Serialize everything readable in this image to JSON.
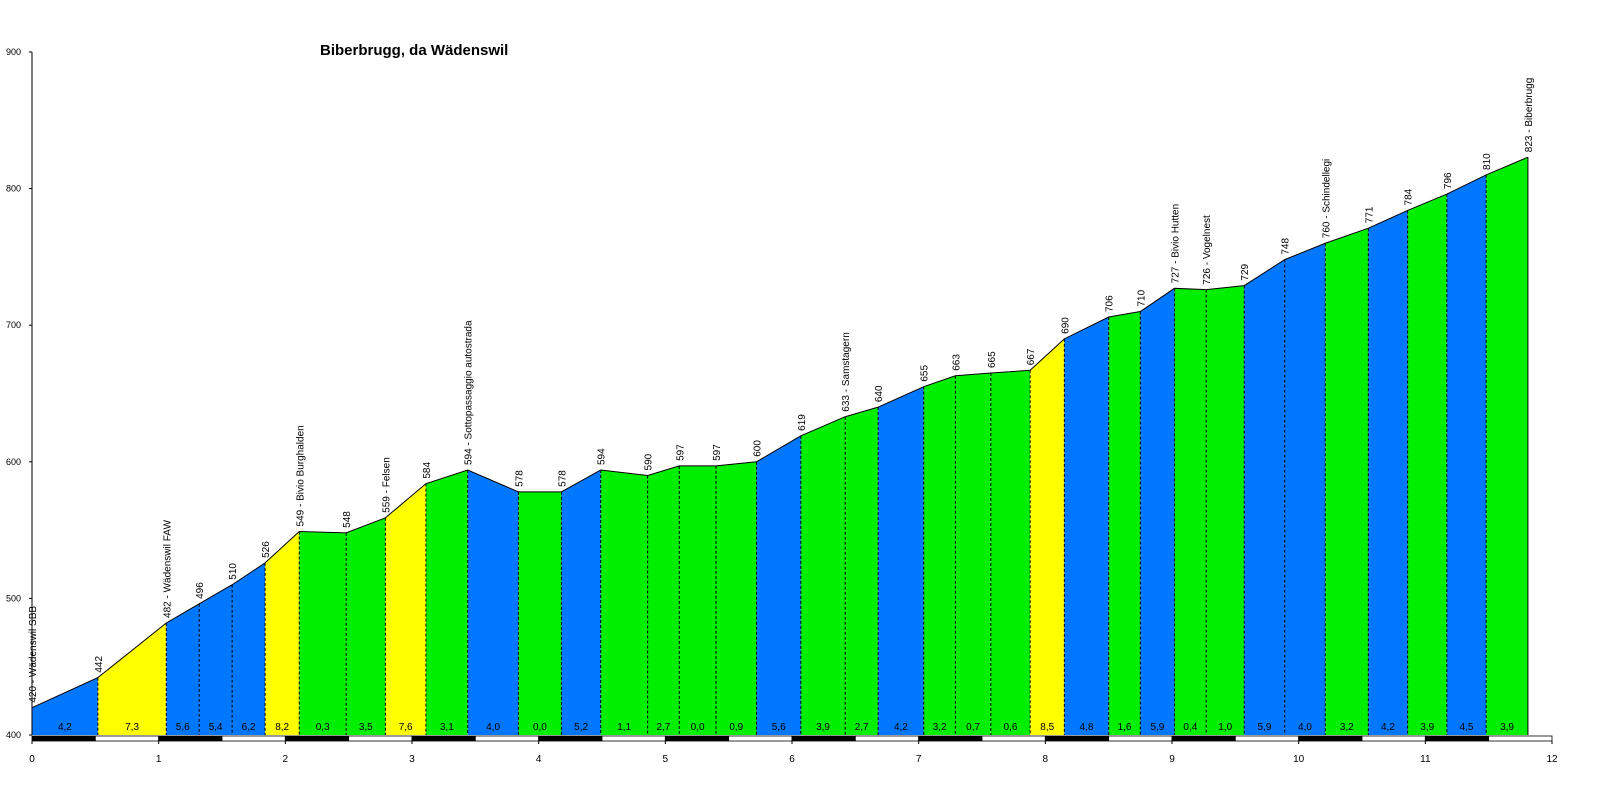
{
  "chart_data": {
    "type": "area",
    "title": "Biberbrugg, da Wädenswil",
    "xlabel": "",
    "ylabel": "",
    "xlim": [
      0,
      12
    ],
    "ylim": [
      400,
      900
    ],
    "yticks": [
      400,
      500,
      600,
      700,
      800,
      900
    ],
    "xticks": [
      0,
      1,
      2,
      3,
      4,
      5,
      6,
      7,
      8,
      9,
      10,
      11,
      12
    ],
    "grid": false,
    "colors": {
      "green": "#00ee00",
      "blue": "#0077ff",
      "yellow": "#ffff00",
      "outline": "#000000"
    },
    "points": [
      {
        "x": 0.0,
        "y": 420,
        "label": "420 - Wädenswil SBB"
      },
      {
        "x": 0.52,
        "y": 442,
        "label": "442"
      },
      {
        "x": 1.06,
        "y": 482,
        "label": "482 - Wädenswil FAW"
      },
      {
        "x": 1.32,
        "y": 496,
        "label": "496"
      },
      {
        "x": 1.58,
        "y": 510,
        "label": "510"
      },
      {
        "x": 1.84,
        "y": 526,
        "label": "526"
      },
      {
        "x": 2.11,
        "y": 549,
        "label": "549 - Bivio Burghalden"
      },
      {
        "x": 2.48,
        "y": 548,
        "label": "548"
      },
      {
        "x": 2.79,
        "y": 559,
        "label": "559 - Felsen"
      },
      {
        "x": 3.11,
        "y": 584,
        "label": "584"
      },
      {
        "x": 3.44,
        "y": 594,
        "label": "594 - Sottopassaggio autostrada"
      },
      {
        "x": 3.84,
        "y": 578,
        "label": "578"
      },
      {
        "x": 4.18,
        "y": 578,
        "label": "578"
      },
      {
        "x": 4.49,
        "y": 594,
        "label": "594"
      },
      {
        "x": 4.86,
        "y": 590,
        "label": "590"
      },
      {
        "x": 5.11,
        "y": 597,
        "label": "597"
      },
      {
        "x": 5.4,
        "y": 597,
        "label": "597"
      },
      {
        "x": 5.72,
        "y": 600,
        "label": "600"
      },
      {
        "x": 6.07,
        "y": 619,
        "label": "619"
      },
      {
        "x": 6.42,
        "y": 633,
        "label": "633 - Samstagern"
      },
      {
        "x": 6.68,
        "y": 640,
        "label": "640"
      },
      {
        "x": 7.04,
        "y": 655,
        "label": "655"
      },
      {
        "x": 7.29,
        "y": 663,
        "label": "663"
      },
      {
        "x": 7.57,
        "y": 665,
        "label": "665"
      },
      {
        "x": 7.88,
        "y": 667,
        "label": "667"
      },
      {
        "x": 8.15,
        "y": 690,
        "label": "690"
      },
      {
        "x": 8.5,
        "y": 706,
        "label": "706"
      },
      {
        "x": 8.75,
        "y": 710,
        "label": "710"
      },
      {
        "x": 9.02,
        "y": 727,
        "label": "727 - Bivio Hutten"
      },
      {
        "x": 9.27,
        "y": 726,
        "label": "726 - Vogelnest"
      },
      {
        "x": 9.57,
        "y": 729,
        "label": "729"
      },
      {
        "x": 9.89,
        "y": 748,
        "label": "748"
      },
      {
        "x": 10.21,
        "y": 760,
        "label": "760 - Schindellegi"
      },
      {
        "x": 10.55,
        "y": 771,
        "label": "771"
      },
      {
        "x": 10.86,
        "y": 784,
        "label": "784"
      },
      {
        "x": 11.17,
        "y": 796,
        "label": "796"
      },
      {
        "x": 11.48,
        "y": 810,
        "label": "810"
      },
      {
        "x": 11.81,
        "y": 823,
        "label": "823 - Biberbrugg"
      }
    ],
    "segments": [
      {
        "grade": "4,2",
        "color": "blue"
      },
      {
        "grade": "7,3",
        "color": "yellow"
      },
      {
        "grade": "5,6",
        "color": "blue"
      },
      {
        "grade": "5,4",
        "color": "blue"
      },
      {
        "grade": "6,2",
        "color": "blue"
      },
      {
        "grade": "8,2",
        "color": "yellow"
      },
      {
        "grade": "0,3",
        "color": "green"
      },
      {
        "grade": "3,5",
        "color": "green"
      },
      {
        "grade": "7,6",
        "color": "yellow"
      },
      {
        "grade": "3,1",
        "color": "green"
      },
      {
        "grade": "4,0",
        "color": "blue"
      },
      {
        "grade": "0,0",
        "color": "green"
      },
      {
        "grade": "5,2",
        "color": "blue"
      },
      {
        "grade": "1,1",
        "color": "green"
      },
      {
        "grade": "2,7",
        "color": "green"
      },
      {
        "grade": "0,0",
        "color": "green"
      },
      {
        "grade": "0,9",
        "color": "green"
      },
      {
        "grade": "5,6",
        "color": "blue"
      },
      {
        "grade": "3,9",
        "color": "green"
      },
      {
        "grade": "2,7",
        "color": "green"
      },
      {
        "grade": "4,2",
        "color": "blue"
      },
      {
        "grade": "3,2",
        "color": "green"
      },
      {
        "grade": "0,7",
        "color": "green"
      },
      {
        "grade": "0,6",
        "color": "green"
      },
      {
        "grade": "8,5",
        "color": "yellow"
      },
      {
        "grade": "4,8",
        "color": "blue"
      },
      {
        "grade": "1,6",
        "color": "green"
      },
      {
        "grade": "5,9",
        "color": "blue"
      },
      {
        "grade": "0,4",
        "color": "green"
      },
      {
        "grade": "1,0",
        "color": "green"
      },
      {
        "grade": "5,9",
        "color": "blue"
      },
      {
        "grade": "4,0",
        "color": "blue"
      },
      {
        "grade": "3,2",
        "color": "green"
      },
      {
        "grade": "4,2",
        "color": "blue"
      },
      {
        "grade": "3,9",
        "color": "green"
      },
      {
        "grade": "4,5",
        "color": "blue"
      },
      {
        "grade": "3,9",
        "color": "green"
      }
    ]
  }
}
